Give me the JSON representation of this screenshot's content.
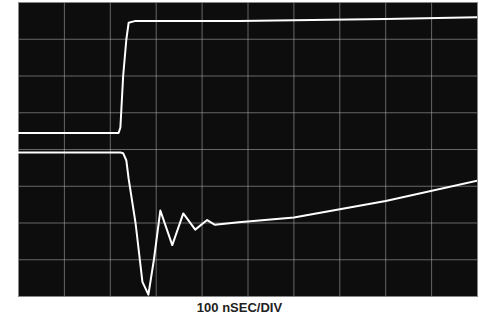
{
  "chart_data": {
    "type": "line",
    "xlabel": "100 nSEC/DIV",
    "x": [
      0,
      218,
      222,
      228,
      235,
      240,
      255,
      270,
      283,
      295,
      309,
      335,
      359,
      385,
      411,
      428,
      480,
      600,
      800,
      1000
    ],
    "series": [
      {
        "color": "#ffffff",
        "values": [
          0.45,
          0.45,
          0.6,
          2.0,
          3.0,
          3.45,
          3.5,
          3.5,
          3.5,
          3.5,
          3.5,
          3.5,
          3.5,
          3.5,
          3.5,
          3.5,
          3.5,
          3.52,
          3.55,
          3.6
        ]
      },
      {
        "color": "#ffffff",
        "values": [
          -0.08,
          -0.08,
          -0.08,
          -0.1,
          -0.3,
          -0.8,
          -2,
          -3.6,
          -3.95,
          -3,
          -1.66,
          -2.6,
          -1.74,
          -2.18,
          -1.92,
          -2.05,
          -1.98,
          -1.85,
          -1.4,
          -0.85
        ]
      }
    ],
    "xlim": [
      0,
      1000
    ],
    "xticks": [
      0,
      100,
      200,
      300,
      400,
      500,
      600,
      700,
      800,
      900,
      1000
    ],
    "ylim": [
      -4,
      4
    ],
    "yticks": [
      -4,
      -3,
      -2,
      -1,
      0,
      1,
      2,
      3,
      4
    ],
    "grid": true,
    "tick_labels": false
  }
}
